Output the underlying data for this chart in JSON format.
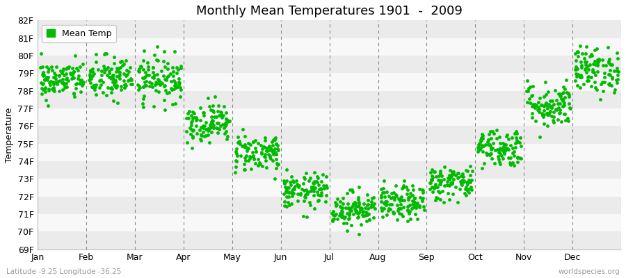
{
  "title": "Monthly Mean Temperatures 1901  -  2009",
  "ylabel": "Temperature",
  "xlabel_labels": [
    "Jan",
    "Feb",
    "Mar",
    "Apr",
    "May",
    "Jun",
    "Jul",
    "Aug",
    "Sep",
    "Oct",
    "Nov",
    "Dec"
  ],
  "subtitle": "Latitude -9.25 Longitude -36.25",
  "watermark": "worldspecies.org",
  "legend_label": "Mean Temp",
  "dot_color": "#00bb00",
  "bg_color": "#ffffff",
  "plot_bg_color": "#ffffff",
  "ylim_min": 69,
  "ylim_max": 82,
  "num_years": 109,
  "seed": 42,
  "monthly_means": [
    78.6,
    78.7,
    78.7,
    76.2,
    74.5,
    72.3,
    71.3,
    71.6,
    72.8,
    74.8,
    77.2,
    79.2
  ],
  "monthly_stds": [
    0.55,
    0.65,
    0.65,
    0.55,
    0.55,
    0.5,
    0.5,
    0.5,
    0.5,
    0.55,
    0.65,
    0.65
  ],
  "monthly_min": [
    76.8,
    76.5,
    76.5,
    74.0,
    73.0,
    70.5,
    69.5,
    70.2,
    71.3,
    73.2,
    75.0,
    77.0
  ],
  "monthly_max": [
    80.7,
    81.2,
    81.5,
    78.2,
    77.6,
    74.5,
    73.5,
    73.5,
    74.5,
    76.5,
    80.5,
    81.5
  ],
  "title_fontsize": 13,
  "label_fontsize": 9,
  "tick_fontsize": 9,
  "marker_size": 3.5,
  "stripe_color_dark": "#ebebeb",
  "stripe_color_light": "#f8f8f8"
}
